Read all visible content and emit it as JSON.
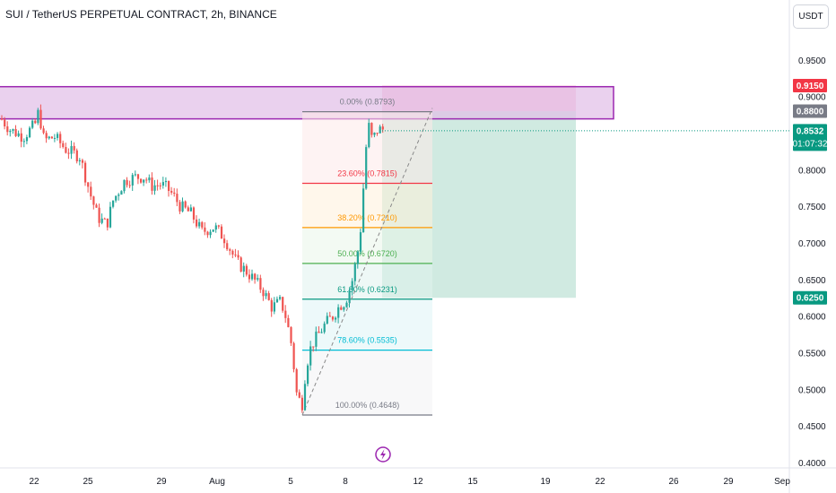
{
  "header": {
    "title": "SUI / TetherUS PERPETUAL CONTRACT, 2h, BINANCE",
    "currency_button": "USDT"
  },
  "colors": {
    "up": "#26a69a",
    "down": "#ef5350",
    "zone_fill": "#e1bee7",
    "zone_border": "#9c27b0",
    "target_fill": "#f8bbd0",
    "stop_fill": "#c8e6dc",
    "price_badge": "#089981",
    "target_badge": "#f23645",
    "level_badge": "#787b86"
  },
  "chart_data": {
    "type": "candlestick",
    "y_axis": {
      "ticks": [
        "0.4000",
        "0.4500",
        "0.5000",
        "0.5500",
        "0.6000",
        "0.6500",
        "0.7000",
        "0.7500",
        "0.8000",
        "0.8500",
        "0.9000",
        "0.9500"
      ],
      "ylim": [
        0.395,
        1.005
      ]
    },
    "x_axis": {
      "ticks": [
        "22",
        "25",
        "29",
        "Aug",
        "5",
        "8",
        "12",
        "15",
        "19",
        "22",
        "26",
        "29",
        "Sep"
      ]
    },
    "price_path": [
      [
        0,
        0.87
      ],
      [
        10,
        0.855
      ],
      [
        25,
        0.845
      ],
      [
        38,
        0.862
      ],
      [
        42,
        0.88
      ],
      [
        48,
        0.84
      ],
      [
        60,
        0.845
      ],
      [
        72,
        0.828
      ],
      [
        88,
        0.818
      ],
      [
        100,
        0.765
      ],
      [
        108,
        0.735
      ],
      [
        118,
        0.725
      ],
      [
        125,
        0.758
      ],
      [
        138,
        0.785
      ],
      [
        150,
        0.79
      ],
      [
        160,
        0.79
      ],
      [
        168,
        0.778
      ],
      [
        178,
        0.78
      ],
      [
        185,
        0.775
      ],
      [
        192,
        0.765
      ],
      [
        200,
        0.75
      ],
      [
        212,
        0.74
      ],
      [
        224,
        0.715
      ],
      [
        238,
        0.722
      ],
      [
        250,
        0.705
      ],
      [
        262,
        0.675
      ],
      [
        272,
        0.663
      ],
      [
        282,
        0.65
      ],
      [
        292,
        0.635
      ],
      [
        302,
        0.612
      ],
      [
        312,
        0.62
      ],
      [
        318,
        0.597
      ],
      [
        324,
        0.56
      ],
      [
        330,
        0.49
      ],
      [
        336,
        0.48
      ],
      [
        340,
        0.53
      ],
      [
        346,
        0.56
      ],
      [
        354,
        0.575
      ],
      [
        362,
        0.59
      ],
      [
        370,
        0.6
      ],
      [
        378,
        0.615
      ],
      [
        384,
        0.62
      ],
      [
        392,
        0.65
      ],
      [
        398,
        0.69
      ],
      [
        402,
        0.73
      ],
      [
        406,
        0.82
      ],
      [
        410,
        0.86
      ],
      [
        414,
        0.84
      ],
      [
        420,
        0.855
      ],
      [
        426,
        0.855
      ]
    ],
    "last_price": 0.8532,
    "countdown": "01:07:32",
    "fibonacci": [
      {
        "label": "0.00% (0.8793)",
        "price": 0.8793,
        "color": "#787b86"
      },
      {
        "label": "23.60% (0.7815)",
        "price": 0.7815,
        "color": "#f23645"
      },
      {
        "label": "38.20% (0.7210)",
        "price": 0.721,
        "color": "#ff9800"
      },
      {
        "label": "50.00% (0.6720)",
        "price": 0.672,
        "color": "#4caf50"
      },
      {
        "label": "61.80% (0.6231)",
        "price": 0.6231,
        "color": "#089981"
      },
      {
        "label": "78.60% (0.5535)",
        "price": 0.5535,
        "color": "#00bcd4"
      },
      {
        "label": "100.00% (0.4648)",
        "price": 0.4648,
        "color": "#787b86"
      }
    ],
    "zone": {
      "top": 0.9135,
      "bottom": 0.8695
    },
    "position": {
      "target": 0.915,
      "entry": 0.88,
      "stop": 0.625
    },
    "price_badges": [
      {
        "value": "0.9150",
        "price": 0.915,
        "kind": "target"
      },
      {
        "value": "0.8800",
        "price": 0.88,
        "kind": "level"
      },
      {
        "value": "0.8532",
        "price": 0.8532,
        "kind": "last"
      },
      {
        "value": "0.6250",
        "price": 0.625,
        "kind": "stop"
      }
    ]
  }
}
